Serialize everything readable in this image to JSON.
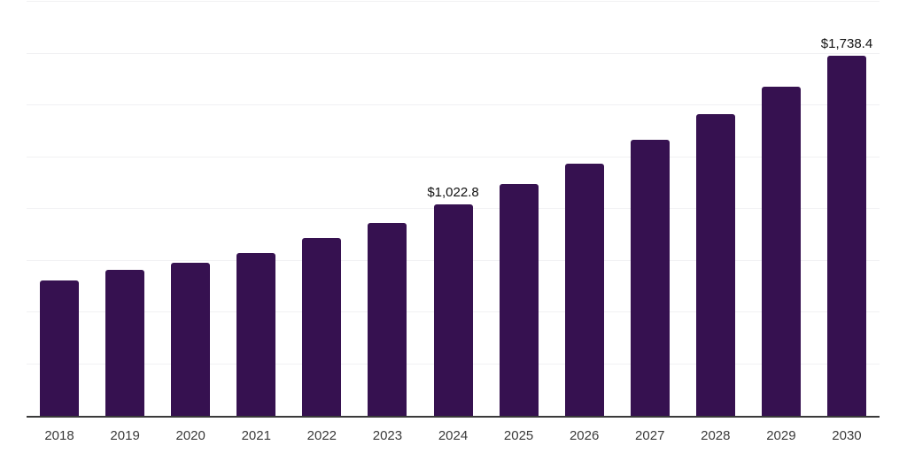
{
  "chart_data": {
    "type": "bar",
    "categories": [
      "2018",
      "2019",
      "2020",
      "2021",
      "2022",
      "2023",
      "2024",
      "2025",
      "2026",
      "2027",
      "2028",
      "2029",
      "2030"
    ],
    "values": [
      655,
      706,
      741,
      787,
      861,
      933,
      1022.8,
      1118,
      1216,
      1332,
      1456,
      1588,
      1738.4
    ],
    "data_labels": {
      "2024": "$1,022.8",
      "2030": "$1,738.4"
    },
    "title": "",
    "xlabel": "",
    "ylabel": "",
    "ylim": [
      0,
      2000
    ],
    "gridline_interval": 250,
    "grid": "horizontal-only",
    "legend": "none",
    "colors": {
      "bar": "#361150",
      "gridline": "#f1f1f3",
      "axis_line": "#3a3a3a",
      "tick_label": "#3a3a3a",
      "data_label": "#111111",
      "background": "#ffffff"
    }
  }
}
